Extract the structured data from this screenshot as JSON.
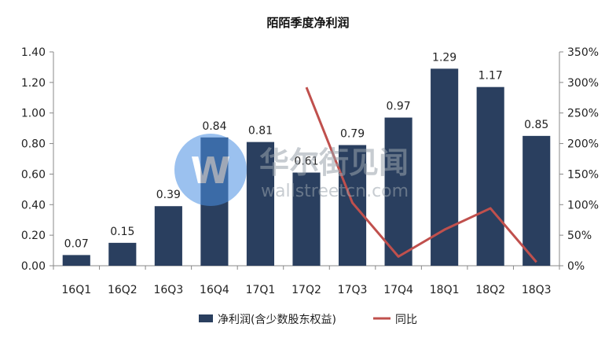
{
  "chart_data": {
    "type": "bar",
    "title": "陌陌季度净利润",
    "categories": [
      "16Q1",
      "16Q2",
      "16Q3",
      "16Q4",
      "17Q1",
      "17Q2",
      "17Q3",
      "17Q4",
      "18Q1",
      "18Q2",
      "18Q3"
    ],
    "series": [
      {
        "name": "净利润(含少数股东权益)",
        "type": "bar",
        "axis": "left",
        "values": [
          0.07,
          0.15,
          0.39,
          0.84,
          0.81,
          0.61,
          0.79,
          0.97,
          1.29,
          1.17,
          0.85
        ],
        "labels": [
          "0.07",
          "0.15",
          "0.39",
          "0.84",
          "0.81",
          "0.61",
          "0.79",
          "0.97",
          "1.29",
          "1.17",
          "0.85"
        ]
      },
      {
        "name": "同比",
        "type": "line",
        "axis": "right",
        "values": [
          null,
          null,
          null,
          null,
          null,
          292,
          103,
          15,
          59,
          94,
          6
        ]
      }
    ],
    "yleft": {
      "min": 0,
      "max": 1.4,
      "ticks": [
        "0.00",
        "0.20",
        "0.40",
        "0.60",
        "0.80",
        "1.00",
        "1.20",
        "1.40"
      ]
    },
    "yright": {
      "min": 0,
      "max": 350,
      "ticks": [
        "0%",
        "50%",
        "100%",
        "150%",
        "200%",
        "250%",
        "300%",
        "350%"
      ]
    },
    "grid": false,
    "legend": "bottom",
    "colors": {
      "bar": "#2a3f5f",
      "line": "#c0504d"
    }
  },
  "watermark": {
    "text_cn": "华尔街见闻",
    "text_en": "wallstreetcn.com"
  }
}
